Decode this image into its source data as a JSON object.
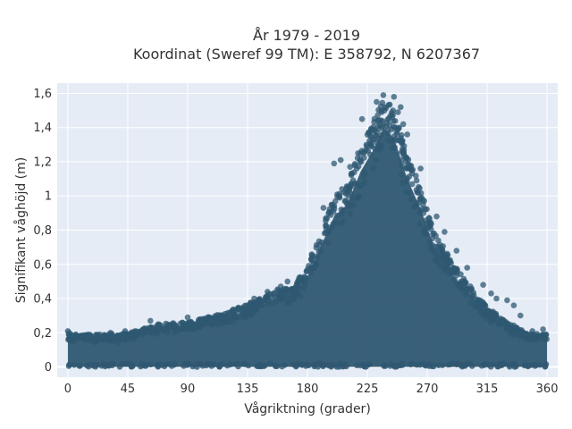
{
  "chart_data": {
    "type": "scatter",
    "title_lines": [
      "År 1979 - 2019",
      "Koordinat (Sweref 99 TM): E 358792, N 6207367"
    ],
    "xlabel": "Vågriktning (grader)",
    "ylabel": "Signifikant våghöjd (m)",
    "xlim": [
      -8,
      368
    ],
    "ylim": [
      -0.06,
      1.66
    ],
    "x_ticks": [
      0,
      45,
      90,
      135,
      180,
      225,
      270,
      315,
      360
    ],
    "x_tick_labels": [
      "0",
      "45",
      "90",
      "135",
      "180",
      "225",
      "270",
      "315",
      "360"
    ],
    "y_ticks": [
      0,
      0.2,
      0.4,
      0.6,
      0.8,
      1.0,
      1.2,
      1.4,
      1.6
    ],
    "y_tick_labels": [
      "0",
      "0,2",
      "0,4",
      "0,6",
      "0,8",
      "1",
      "1,2",
      "1,4",
      "1,6"
    ],
    "grid": true,
    "marker_color": "#2f5872",
    "background_color": "#e5ecf6",
    "envelope": [
      {
        "x": 0,
        "y_max": 0.2
      },
      {
        "x": 20,
        "y_max": 0.19
      },
      {
        "x": 45,
        "y_max": 0.2
      },
      {
        "x": 65,
        "y_max": 0.25
      },
      {
        "x": 90,
        "y_max": 0.27
      },
      {
        "x": 110,
        "y_max": 0.3
      },
      {
        "x": 135,
        "y_max": 0.37
      },
      {
        "x": 155,
        "y_max": 0.45
      },
      {
        "x": 170,
        "y_max": 0.48
      },
      {
        "x": 180,
        "y_max": 0.6
      },
      {
        "x": 190,
        "y_max": 0.8
      },
      {
        "x": 200,
        "y_max": 1.0
      },
      {
        "x": 210,
        "y_max": 1.08
      },
      {
        "x": 220,
        "y_max": 1.3
      },
      {
        "x": 230,
        "y_max": 1.45
      },
      {
        "x": 237,
        "y_max": 1.59
      },
      {
        "x": 245,
        "y_max": 1.52
      },
      {
        "x": 255,
        "y_max": 1.25
      },
      {
        "x": 265,
        "y_max": 1.05
      },
      {
        "x": 275,
        "y_max": 0.8
      },
      {
        "x": 290,
        "y_max": 0.6
      },
      {
        "x": 305,
        "y_max": 0.45
      },
      {
        "x": 315,
        "y_max": 0.35
      },
      {
        "x": 330,
        "y_max": 0.27
      },
      {
        "x": 345,
        "y_max": 0.2
      },
      {
        "x": 360,
        "y_max": 0.2
      }
    ],
    "outliers": [
      {
        "x": 237,
        "y": 1.59
      },
      {
        "x": 245,
        "y": 1.58
      },
      {
        "x": 232,
        "y": 1.55
      },
      {
        "x": 250,
        "y": 1.52
      },
      {
        "x": 248,
        "y": 1.49
      },
      {
        "x": 221,
        "y": 1.45
      },
      {
        "x": 252,
        "y": 1.42
      },
      {
        "x": 226,
        "y": 1.37
      },
      {
        "x": 255,
        "y": 1.36
      },
      {
        "x": 230,
        "y": 1.33
      },
      {
        "x": 228,
        "y": 1.29
      },
      {
        "x": 244,
        "y": 1.28
      },
      {
        "x": 234,
        "y": 1.27
      },
      {
        "x": 218,
        "y": 1.25
      },
      {
        "x": 205,
        "y": 1.21
      },
      {
        "x": 200,
        "y": 1.19
      },
      {
        "x": 265,
        "y": 1.16
      },
      {
        "x": 262,
        "y": 1.09
      },
      {
        "x": 212,
        "y": 1.17
      },
      {
        "x": 192,
        "y": 0.93
      },
      {
        "x": 277,
        "y": 0.88
      },
      {
        "x": 283,
        "y": 0.79
      },
      {
        "x": 292,
        "y": 0.68
      },
      {
        "x": 300,
        "y": 0.58
      },
      {
        "x": 312,
        "y": 0.48
      },
      {
        "x": 318,
        "y": 0.43
      },
      {
        "x": 322,
        "y": 0.4
      },
      {
        "x": 330,
        "y": 0.39
      },
      {
        "x": 335,
        "y": 0.36
      },
      {
        "x": 340,
        "y": 0.3
      },
      {
        "x": 165,
        "y": 0.5
      },
      {
        "x": 160,
        "y": 0.47
      },
      {
        "x": 150,
        "y": 0.44
      },
      {
        "x": 140,
        "y": 0.4
      },
      {
        "x": 138,
        "y": 0.37
      },
      {
        "x": 128,
        "y": 0.34
      },
      {
        "x": 118,
        "y": 0.31
      },
      {
        "x": 113,
        "y": 0.28
      },
      {
        "x": 105,
        "y": 0.29
      },
      {
        "x": 95,
        "y": 0.25
      },
      {
        "x": 90,
        "y": 0.29
      },
      {
        "x": 75,
        "y": 0.2
      },
      {
        "x": 62,
        "y": 0.27
      },
      {
        "x": 43,
        "y": 0.21
      },
      {
        "x": 32,
        "y": 0.2
      },
      {
        "x": 0,
        "y": 0.21
      },
      {
        "x": 1,
        "y": 0.2
      },
      {
        "x": 357,
        "y": 0.22
      },
      {
        "x": 349,
        "y": 0.21
      },
      {
        "x": 24,
        "y": 0.19
      }
    ]
  }
}
